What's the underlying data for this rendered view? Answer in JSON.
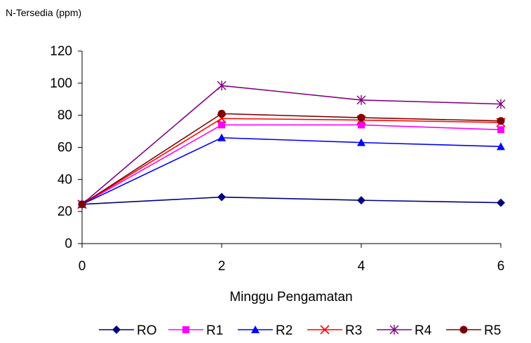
{
  "chart_data": {
    "type": "line",
    "title": "",
    "ylabel": "N-Tersedia (ppm)",
    "xlabel": "Minggu Pengamatan",
    "x": [
      0,
      2,
      4,
      6
    ],
    "x_ticks": [
      "0",
      "2",
      "4",
      "6"
    ],
    "ylim": [
      0,
      120
    ],
    "y_ticks": [
      "0",
      "20",
      "40",
      "60",
      "80",
      "100",
      "120"
    ],
    "grid": false,
    "legend_position": "bottom",
    "series": [
      {
        "name": "RO",
        "values": [
          24.5,
          29,
          27,
          25.5
        ],
        "color": "#000080",
        "marker": "diamond"
      },
      {
        "name": "R1",
        "values": [
          24.5,
          74,
          74,
          71
        ],
        "color": "#FF00FF",
        "marker": "square"
      },
      {
        "name": "R2",
        "values": [
          24.5,
          66,
          63,
          60.5
        ],
        "color": "#0000FF",
        "marker": "triangle"
      },
      {
        "name": "R3",
        "values": [
          24.5,
          78,
          77,
          75.5
        ],
        "color": "#FF0000",
        "marker": "x"
      },
      {
        "name": "R4",
        "values": [
          24.5,
          98.5,
          89.5,
          87
        ],
        "color": "#800080",
        "marker": "star"
      },
      {
        "name": "R5",
        "values": [
          24.5,
          81,
          78.5,
          76.5
        ],
        "color": "#800000",
        "marker": "circle"
      }
    ]
  }
}
